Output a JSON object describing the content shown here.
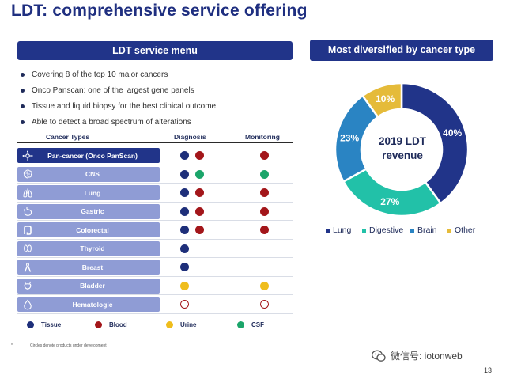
{
  "title": "LDT: comprehensive service offering",
  "left_header": "LDT service menu",
  "right_header": "Most diversified by cancer type",
  "bullets": [
    "Covering 8 of the top 10 major cancers",
    "Onco Panscan: one of the largest gene panels",
    "Tissue and liquid biopsy for the best clinical outcome",
    "Able to detect a broad spectrum of alterations"
  ],
  "table": {
    "headers": {
      "types": "Cancer Types",
      "diagnosis": "Diagnosis",
      "monitoring": "Monitoring"
    },
    "rows": [
      {
        "label": "Pan-cancer (Onco PanScan)",
        "icon": "pan-cancer-icon",
        "diagnosis": [
          "tissue",
          "blood"
        ],
        "monitoring": [
          "blood"
        ]
      },
      {
        "label": "CNS",
        "icon": "brain-icon",
        "diagnosis": [
          "tissue",
          "csf"
        ],
        "monitoring": [
          "csf"
        ]
      },
      {
        "label": "Lung",
        "icon": "lungs-icon",
        "diagnosis": [
          "tissue",
          "blood"
        ],
        "monitoring": [
          "blood"
        ]
      },
      {
        "label": "Gastric",
        "icon": "stomach-icon",
        "diagnosis": [
          "tissue",
          "blood"
        ],
        "monitoring": [
          "blood"
        ]
      },
      {
        "label": "Colorectal",
        "icon": "colon-icon",
        "diagnosis": [
          "tissue",
          "blood"
        ],
        "monitoring": [
          "blood"
        ]
      },
      {
        "label": "Thyroid",
        "icon": "thyroid-icon",
        "diagnosis": [
          "tissue"
        ],
        "monitoring": []
      },
      {
        "label": "Breast",
        "icon": "ribbon-icon",
        "diagnosis": [
          "tissue"
        ],
        "monitoring": []
      },
      {
        "label": "Bladder",
        "icon": "bladder-icon",
        "diagnosis": [
          "urine"
        ],
        "monitoring": [
          "urine"
        ]
      },
      {
        "label": "Hematologic",
        "icon": "blood-drop-icon",
        "diagnosis": [
          "blood-dev"
        ],
        "monitoring": [
          "blood-dev"
        ]
      }
    ]
  },
  "legend": [
    {
      "key": "tissue",
      "label": "Tissue",
      "color": "#1e2f7a"
    },
    {
      "key": "blood",
      "label": "Blood",
      "color": "#a3161a"
    },
    {
      "key": "urine",
      "label": "Urine",
      "color": "#efbd1c"
    },
    {
      "key": "csf",
      "label": "CSF",
      "color": "#1ba56a"
    }
  ],
  "footnote": {
    "mark": "*",
    "text": "Circles denote products under development"
  },
  "chart_data": {
    "type": "pie",
    "title": "2019 LDT revenue",
    "slices": [
      {
        "name": "Lung",
        "value": 40,
        "label": "40%",
        "color": "#213489"
      },
      {
        "name": "Digestive",
        "value": 27,
        "label": "27%",
        "color": "#22c1a8"
      },
      {
        "name": "Brain",
        "value": 23,
        "label": "23%",
        "color": "#2a84c3"
      },
      {
        "name": "Other",
        "value": 10,
        "label": "10%",
        "color": "#e5bb3a"
      }
    ],
    "legend": [
      "Lung",
      "Digestive",
      "Brain",
      "Other"
    ]
  },
  "center_text": {
    "line1": "2019 LDT",
    "line2": "revenue"
  },
  "watermark": "微信号: iotonweb",
  "page_number": "13"
}
